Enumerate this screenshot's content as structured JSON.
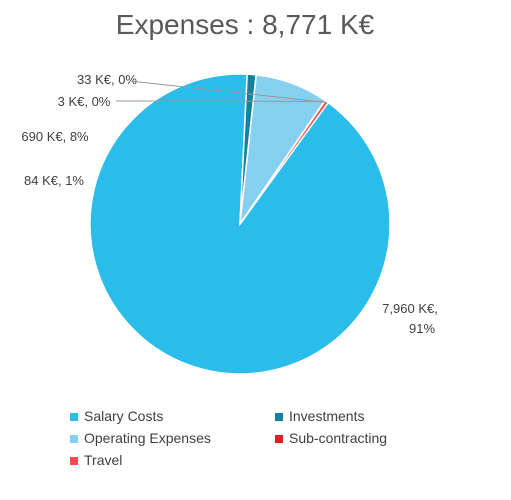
{
  "chart_data": {
    "type": "pie",
    "title": "Expenses : 8,771 K€",
    "slices": [
      {
        "name": "Salary Costs",
        "value": 7960,
        "label_line1": "7,960 K€,",
        "label_line2": "91%",
        "color": "#2ABDEB"
      },
      {
        "name": "Investments",
        "value": 84,
        "label_line1": "84 K€, 1%",
        "label_line2": "",
        "color": "#16819F"
      },
      {
        "name": "Operating Expenses",
        "value": 690,
        "label_line1": "690 K€, 8%",
        "label_line2": "",
        "color": "#85D0EE"
      },
      {
        "name": "Sub-contracting",
        "value": 3,
        "label_line1": "3 K€, 0%",
        "label_line2": "",
        "color": "#E11F21"
      },
      {
        "name": "Travel",
        "value": 33,
        "label_line1": "33 K€, 0%",
        "label_line2": "",
        "color": "#F04D4F"
      }
    ],
    "legend_position": "bottom",
    "legend": [
      {
        "label": "Salary Costs",
        "color": "#2ABDEB"
      },
      {
        "label": "Investments",
        "color": "#16819F"
      },
      {
        "label": "Operating Expenses",
        "color": "#85D0EE"
      },
      {
        "label": "Sub-contracting",
        "color": "#E11F21"
      },
      {
        "label": "Travel",
        "color": "#F04D4F"
      }
    ]
  }
}
